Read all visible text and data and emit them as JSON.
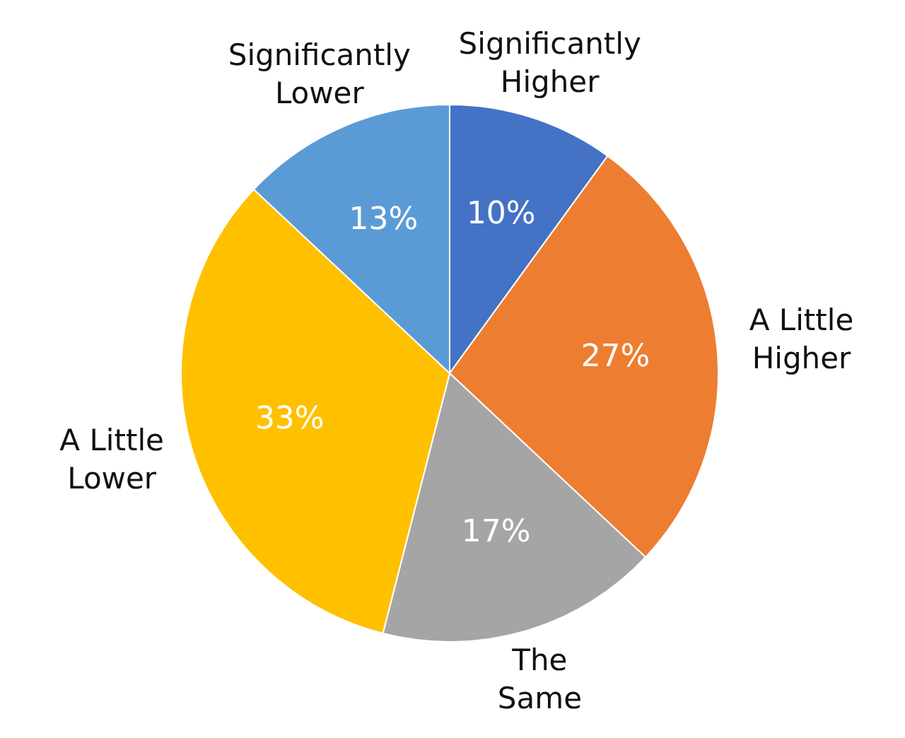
{
  "chart_data": {
    "type": "pie",
    "categories": [
      "Significantly Higher",
      "A Little Higher",
      "The Same",
      "A Little Lower",
      "Significantly Lower"
    ],
    "values": [
      10,
      27,
      17,
      33,
      13
    ],
    "colors": [
      "#4472c4",
      "#ed7d31",
      "#a5a5a5",
      "#ffc000",
      "#5b9bd5"
    ],
    "value_labels": [
      "10%",
      "27%",
      "17%",
      "33%",
      "13%"
    ]
  }
}
